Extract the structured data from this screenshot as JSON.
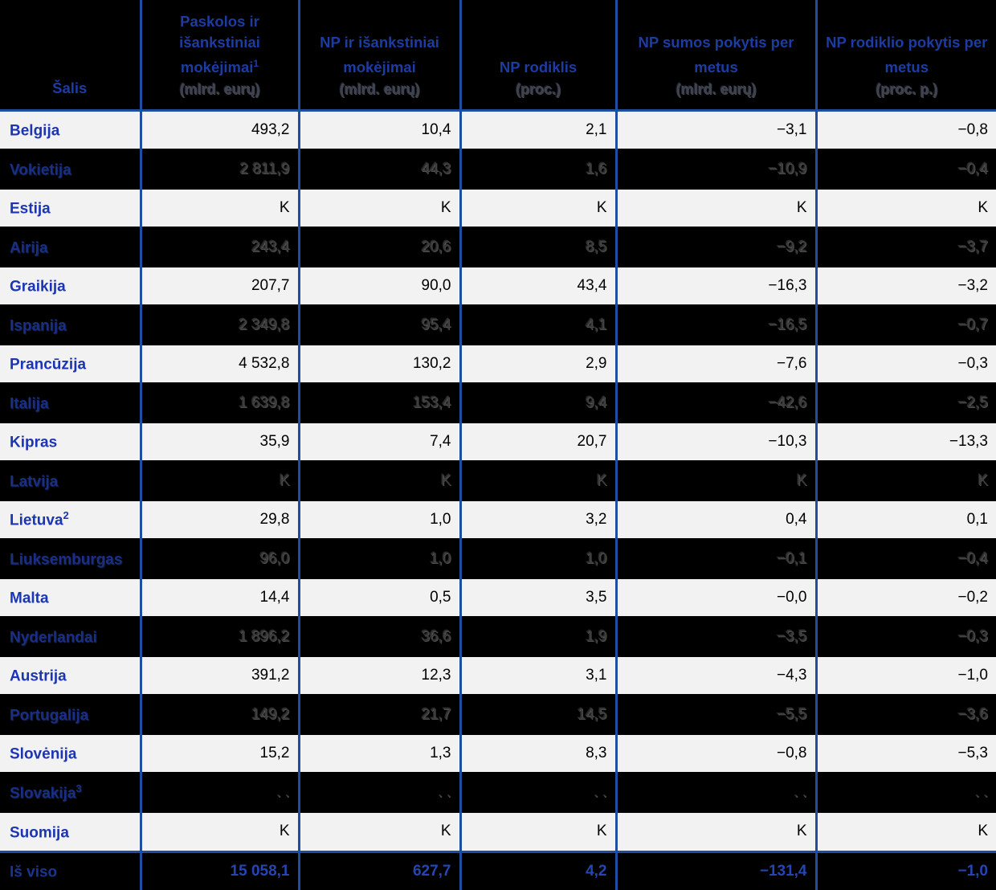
{
  "table": {
    "columns": [
      {
        "label": "Šalis",
        "unit": ""
      },
      {
        "label": "Paskolos ir išankstiniai mokėjimai",
        "sup": "1",
        "unit": "(mlrd. eurų)"
      },
      {
        "label": "NP ir išankstiniai mokėjimai",
        "unit": "(mlrd. eurų)"
      },
      {
        "label": "NP rodiklis",
        "unit": "(proc.)"
      },
      {
        "label": "NP sumos pokytis per metus",
        "unit": "(mlrd. eurų)"
      },
      {
        "label": "NP rodiklio pokytis per metus",
        "unit": "(proc. p.)"
      }
    ],
    "rows": [
      {
        "country": "Belgija",
        "variant": "light",
        "values": [
          "493,2",
          "10,4",
          "2,1",
          "−3,1",
          "−0,8"
        ]
      },
      {
        "country": "Vokietija",
        "variant": "dark",
        "values": [
          "2 811,9",
          "44,3",
          "1,6",
          "−10,9",
          "−0,4"
        ]
      },
      {
        "country": "Estija",
        "variant": "light",
        "values": [
          "K",
          "K",
          "K",
          "K",
          "K"
        ]
      },
      {
        "country": "Airija",
        "variant": "dark",
        "values": [
          "243,4",
          "20,6",
          "8,5",
          "−9,2",
          "−3,7"
        ]
      },
      {
        "country": "Graikija",
        "variant": "light",
        "values": [
          "207,7",
          "90,0",
          "43,4",
          "−16,3",
          "−3,2"
        ]
      },
      {
        "country": "Ispanija",
        "variant": "dark",
        "values": [
          "2 349,8",
          "95,4",
          "4,1",
          "−16,5",
          "−0,7"
        ]
      },
      {
        "country": "Prancūzija",
        "variant": "light",
        "values": [
          "4 532,8",
          "130,2",
          "2,9",
          "−7,6",
          "−0,3"
        ]
      },
      {
        "country": "Italija",
        "variant": "dark",
        "values": [
          "1 639,8",
          "153,4",
          "9,4",
          "−42,6",
          "−2,5"
        ]
      },
      {
        "country": "Kipras",
        "variant": "light",
        "values": [
          "35,9",
          "7,4",
          "20,7",
          "−10,3",
          "−13,3"
        ]
      },
      {
        "country": "Latvija",
        "variant": "dark",
        "values": [
          "K",
          "K",
          "K",
          "K",
          "K"
        ]
      },
      {
        "country": "Lietuva",
        "sup": "2",
        "variant": "light",
        "values": [
          "29,8",
          "1,0",
          "3,2",
          "0,4",
          "0,1"
        ]
      },
      {
        "country": "Liuksemburgas",
        "variant": "dark",
        "values": [
          "96,0",
          "1,0",
          "1,0",
          "−0,1",
          "−0,4"
        ]
      },
      {
        "country": "Malta",
        "variant": "light",
        "values": [
          "14,4",
          "0,5",
          "3,5",
          "−0,0",
          "−0,2"
        ]
      },
      {
        "country": "Nyderlandai",
        "variant": "dark",
        "values": [
          "1 896,2",
          "36,6",
          "1,9",
          "−3,5",
          "−0,3"
        ]
      },
      {
        "country": "Austrija",
        "variant": "light",
        "values": [
          "391,2",
          "12,3",
          "3,1",
          "−4,3",
          "−1,0"
        ]
      },
      {
        "country": "Portugalija",
        "variant": "dark",
        "values": [
          "149,2",
          "21,7",
          "14,5",
          "−5,5",
          "−3,6"
        ]
      },
      {
        "country": "Slovėnija",
        "variant": "light",
        "values": [
          "15,2",
          "1,3",
          "8,3",
          "−0,8",
          "−5,3"
        ]
      },
      {
        "country": "Slovakija",
        "sup": "3",
        "variant": "dark",
        "values": [
          ". .",
          ". .",
          ". .",
          ". .",
          ". ."
        ]
      },
      {
        "country": "Suomija",
        "variant": "light",
        "values": [
          "K",
          "K",
          "K",
          "K",
          "K"
        ]
      },
      {
        "country": "Iš viso",
        "variant": "total",
        "values": [
          "15 058,1",
          "627,7",
          "4,2",
          "−131,4",
          "−1,0"
        ]
      }
    ]
  },
  "colors": {
    "grid_border_blue": "#1e4da2",
    "light_row_background": "#f2f2f2",
    "dark_row_background": "#000000",
    "country_name_blue": "#1c35b2",
    "header_text_blue": "#1d3ca2",
    "dark_row_value_gray": "#3a3a3a",
    "total_row_value_blue": "#2546b2"
  }
}
